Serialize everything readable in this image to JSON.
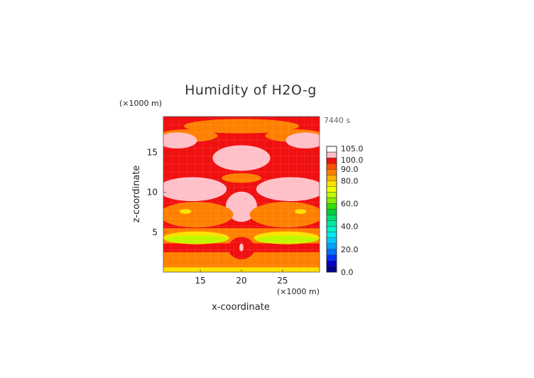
{
  "chart_data": {
    "type": "heatmap",
    "title": "Humidity of H2O-g",
    "xlabel": "x-coordinate",
    "ylabel": "z-coordinate",
    "x_unit": "(×1000 m)",
    "y_unit": "(×1000 m)",
    "time_label": "7440 s",
    "xlim": [
      10.5,
      29.5
    ],
    "ylim": [
      0,
      19.5
    ],
    "x_ticks": [
      "15",
      "20",
      "25"
    ],
    "y_ticks": [
      "5",
      "10",
      "15"
    ],
    "grid": true,
    "legend_position": "right",
    "colorbar": {
      "labels": [
        "0.0",
        "20.0",
        "40.0",
        "60.0",
        "80.0",
        "90.0",
        "100.0",
        "105.0"
      ],
      "levels": [
        {
          "from": 0,
          "to": 5,
          "color": "#00008c"
        },
        {
          "from": 5,
          "to": 10,
          "color": "#0000c8"
        },
        {
          "from": 10,
          "to": 15,
          "color": "#0030ff"
        },
        {
          "from": 15,
          "to": 20,
          "color": "#0070ff"
        },
        {
          "from": 20,
          "to": 25,
          "color": "#00a0ff"
        },
        {
          "from": 25,
          "to": 30,
          "color": "#00c8ff"
        },
        {
          "from": 30,
          "to": 35,
          "color": "#00e8f0"
        },
        {
          "from": 35,
          "to": 40,
          "color": "#00f0c8"
        },
        {
          "from": 40,
          "to": 45,
          "color": "#00e8a0"
        },
        {
          "from": 45,
          "to": 50,
          "color": "#00e070"
        },
        {
          "from": 50,
          "to": 55,
          "color": "#00d040"
        },
        {
          "from": 55,
          "to": 60,
          "color": "#30e000"
        },
        {
          "from": 60,
          "to": 65,
          "color": "#80f000"
        },
        {
          "from": 65,
          "to": 70,
          "color": "#c0f800"
        },
        {
          "from": 70,
          "to": 75,
          "color": "#f0ff00"
        },
        {
          "from": 75,
          "to": 80,
          "color": "#ffe000"
        },
        {
          "from": 80,
          "to": 85,
          "color": "#ffb000"
        },
        {
          "from": 85,
          "to": 90,
          "color": "#ff8000"
        },
        {
          "from": 90,
          "to": 95,
          "color": "#ff5000"
        },
        {
          "from": 95,
          "to": 100,
          "color": "#f01010"
        },
        {
          "from": 100,
          "to": 105,
          "color": "#ffc0c8"
        }
      ],
      "top_color": "#ffffff"
    },
    "regions": [
      {
        "name": "background",
        "value": 97,
        "shape": "rect",
        "x": [
          10.5,
          29.5
        ],
        "z": [
          0,
          19.5
        ]
      },
      {
        "name": "upper-orange-band",
        "value": 87,
        "shape": "ellipse",
        "cx": 20,
        "cz": 18.3,
        "rx": 7,
        "rz": 0.9
      },
      {
        "name": "upper-orange-left",
        "value": 87,
        "shape": "ellipse",
        "cx": 13.5,
        "cz": 17.1,
        "rx": 3.6,
        "rz": 0.8
      },
      {
        "name": "upper-orange-right",
        "value": 87,
        "shape": "ellipse",
        "cx": 26.5,
        "cz": 17.1,
        "rx": 3.6,
        "rz": 0.8
      },
      {
        "name": "sat-left-top",
        "value": 102,
        "shape": "ellipse",
        "cx": 12.2,
        "cz": 16.5,
        "rx": 2.4,
        "rz": 1.0
      },
      {
        "name": "sat-right-top",
        "value": 102,
        "shape": "ellipse",
        "cx": 27.8,
        "cz": 16.5,
        "rx": 2.4,
        "rz": 1.0
      },
      {
        "name": "sat-center-top",
        "value": 102,
        "shape": "ellipse",
        "cx": 20,
        "cz": 14.3,
        "rx": 3.5,
        "rz": 1.6
      },
      {
        "name": "mid-orange-center",
        "value": 87,
        "shape": "ellipse",
        "cx": 20,
        "cz": 11.8,
        "rx": 2.4,
        "rz": 0.6
      },
      {
        "name": "sat-left-mid",
        "value": 102,
        "shape": "ellipse",
        "cx": 14.0,
        "cz": 10.4,
        "rx": 4.2,
        "rz": 1.5
      },
      {
        "name": "sat-right-mid",
        "value": 102,
        "shape": "ellipse",
        "cx": 26.0,
        "cz": 10.4,
        "rx": 4.2,
        "rz": 1.5
      },
      {
        "name": "sat-center-mid",
        "value": 102,
        "shape": "ellipse",
        "cx": 20,
        "cz": 8.2,
        "rx": 1.9,
        "rz": 1.9
      },
      {
        "name": "lower-orange-left",
        "value": 87,
        "shape": "ellipse",
        "cx": 14.5,
        "cz": 7.2,
        "rx": 4.5,
        "rz": 1.6
      },
      {
        "name": "lower-orange-right",
        "value": 87,
        "shape": "ellipse",
        "cx": 25.5,
        "cz": 7.2,
        "rx": 4.5,
        "rz": 1.6
      },
      {
        "name": "yellow-spot-left",
        "value": 77,
        "shape": "ellipse",
        "cx": 13.2,
        "cz": 7.6,
        "rx": 0.7,
        "rz": 0.3
      },
      {
        "name": "yellow-spot-right",
        "value": 77,
        "shape": "ellipse",
        "cx": 27.2,
        "cz": 7.6,
        "rx": 0.7,
        "rz": 0.3
      },
      {
        "name": "lower-band-orange",
        "value": 87,
        "shape": "rect",
        "x": [
          10.5,
          29.5
        ],
        "z": [
          3.6,
          5.5
        ]
      },
      {
        "name": "yellow-band-left",
        "value": 77,
        "shape": "ellipse",
        "cx": 14.5,
        "cz": 4.3,
        "rx": 4.0,
        "rz": 0.8
      },
      {
        "name": "yellow-band-right",
        "value": 77,
        "shape": "ellipse",
        "cx": 25.5,
        "cz": 4.3,
        "rx": 4.0,
        "rz": 0.8
      },
      {
        "name": "green-band-left",
        "value": 67,
        "shape": "ellipse",
        "cx": 14.5,
        "cz": 4.1,
        "rx": 3.8,
        "rz": 0.5
      },
      {
        "name": "green-band-right",
        "value": 67,
        "shape": "ellipse",
        "cx": 25.5,
        "cz": 4.1,
        "rx": 3.8,
        "rz": 0.5
      },
      {
        "name": "lowest-orange",
        "value": 87,
        "shape": "rect",
        "x": [
          10.5,
          29.5
        ],
        "z": [
          0,
          2.5
        ]
      },
      {
        "name": "bottom-yellow",
        "value": 77,
        "shape": "rect",
        "x": [
          10.5,
          29.5
        ],
        "z": [
          0,
          0.6
        ]
      },
      {
        "name": "red-core",
        "value": 97,
        "shape": "ellipse",
        "cx": 20,
        "cz": 3.0,
        "rx": 1.6,
        "rz": 1.4
      },
      {
        "name": "sat-core",
        "value": 102,
        "shape": "ellipse",
        "cx": 20,
        "cz": 3.1,
        "rx": 0.25,
        "rz": 0.5
      }
    ]
  }
}
